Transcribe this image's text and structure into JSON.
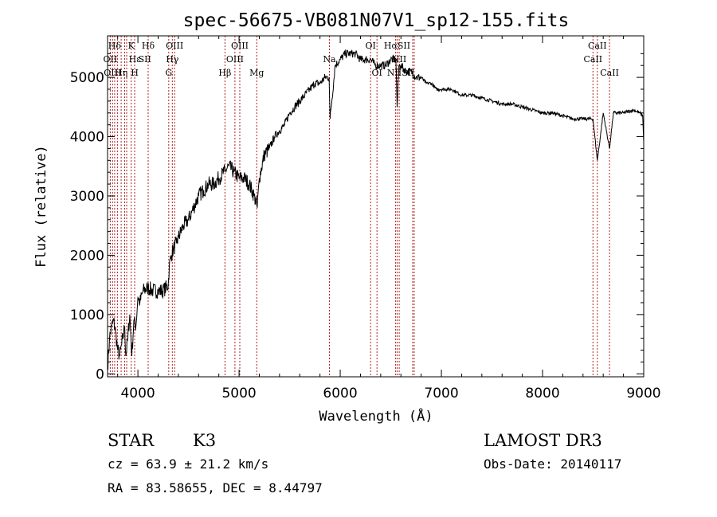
{
  "chart_data": {
    "type": "line",
    "title": "spec-56675-VB081N07V1_sp12-155.fits",
    "xlabel": "Wavelength (Å)",
    "ylabel": "Flux (relative)",
    "xlim": [
      3700,
      9000
    ],
    "ylim": [
      -50,
      5700
    ],
    "xticks": [
      4000,
      5000,
      6000,
      7000,
      8000,
      9000
    ],
    "yticks": [
      0,
      1000,
      2000,
      3000,
      4000,
      5000
    ],
    "grid": false,
    "legend": "none",
    "lines_color": "#b22222",
    "series": [
      {
        "x": [
          3700,
          3720,
          3740,
          3760,
          3780,
          3800,
          3820,
          3840,
          3860,
          3870,
          3880,
          3900,
          3920,
          3940,
          3960,
          3980,
          4000,
          4020,
          4050,
          4100,
          4150,
          4200,
          4250,
          4300,
          4310,
          4330,
          4350,
          4380,
          4400,
          4450,
          4500,
          4550,
          4600,
          4650,
          4700,
          4750,
          4800,
          4850,
          4900,
          4950,
          5000,
          5050,
          5100,
          5150,
          5180,
          5200,
          5250,
          5300,
          5350,
          5400,
          5450,
          5500,
          5550,
          5600,
          5650,
          5700,
          5750,
          5800,
          5850,
          5890,
          5900,
          5950,
          6000,
          6050,
          6100,
          6150,
          6200,
          6250,
          6300,
          6350,
          6400,
          6450,
          6500,
          6550,
          6563,
          6580,
          6600,
          6650,
          6700,
          6750,
          6800,
          6850,
          6900,
          6950,
          7000,
          7100,
          7200,
          7300,
          7400,
          7500,
          7600,
          7700,
          7800,
          7900,
          8000,
          8100,
          8200,
          8300,
          8400,
          8498,
          8542,
          8600,
          8662,
          8700,
          8800,
          8900,
          8960,
          8990,
          9000
        ],
        "y": [
          100,
          600,
          800,
          900,
          700,
          400,
          300,
          500,
          700,
          800,
          300,
          600,
          1000,
          300,
          900,
          800,
          1300,
          1200,
          1400,
          1450,
          1400,
          1400,
          1400,
          1500,
          1800,
          2000,
          2100,
          2200,
          2300,
          2500,
          2600,
          2800,
          3000,
          3100,
          3200,
          3200,
          3300,
          3400,
          3500,
          3400,
          3300,
          3300,
          3200,
          3000,
          2800,
          3300,
          3700,
          3800,
          4000,
          4100,
          4200,
          4400,
          4500,
          4600,
          4700,
          4800,
          4900,
          4900,
          5000,
          5000,
          4300,
          5200,
          5300,
          5400,
          5400,
          5400,
          5300,
          5300,
          5300,
          5200,
          5200,
          5200,
          5300,
          5300,
          4500,
          5200,
          5200,
          5100,
          5100,
          5000,
          5000,
          4900,
          4900,
          4800,
          4800,
          4800,
          4700,
          4700,
          4650,
          4600,
          4550,
          4550,
          4500,
          4450,
          4400,
          4400,
          4350,
          4300,
          4300,
          4300,
          3600,
          4400,
          3800,
          4400,
          4400,
          4450,
          4400,
          4350,
          3900
        ]
      }
    ],
    "line_labels": [
      {
        "text": "Hδ",
        "wl": 3770,
        "row": 0
      },
      {
        "text": "K",
        "wl": 3934,
        "row": 0
      },
      {
        "text": "Hδ",
        "wl": 4102,
        "row": 0
      },
      {
        "text": "OIII",
        "wl": 4363,
        "row": 0
      },
      {
        "text": "OIII",
        "wl": 5007,
        "row": 0
      },
      {
        "text": "OI",
        "wl": 6300,
        "row": 0
      },
      {
        "text": "HαSII",
        "wl": 6563,
        "row": 0
      },
      {
        "text": "CaII",
        "wl": 8542,
        "row": 0
      },
      {
        "text": "OII",
        "wl": 3727,
        "row": 1
      },
      {
        "text": "Hε",
        "wl": 3970,
        "row": 1
      },
      {
        "text": "SII",
        "wl": 4068,
        "row": 1
      },
      {
        "text": "Hγ",
        "wl": 4340,
        "row": 1
      },
      {
        "text": "OIII",
        "wl": 4959,
        "row": 1
      },
      {
        "text": "Na",
        "wl": 5893,
        "row": 1
      },
      {
        "text": "NII",
        "wl": 6583,
        "row": 1
      },
      {
        "text": "CaII",
        "wl": 8498,
        "row": 1
      },
      {
        "text": "OIII",
        "wl": 3750,
        "row": 2
      },
      {
        "text": "Hη",
        "wl": 3835,
        "row": 2
      },
      {
        "text": "H",
        "wl": 3968,
        "row": 2
      },
      {
        "text": "G",
        "wl": 4305,
        "row": 2
      },
      {
        "text": "Hβ",
        "wl": 4861,
        "row": 2
      },
      {
        "text": "Mg",
        "wl": 5175,
        "row": 2
      },
      {
        "text": "OI",
        "wl": 6363,
        "row": 2
      },
      {
        "text": "NIISII",
        "wl": 6600,
        "row": 2
      },
      {
        "text": "CaII",
        "wl": 8662,
        "row": 2
      }
    ],
    "line_markers": [
      3727,
      3750,
      3770,
      3798,
      3835,
      3869,
      3889,
      3934,
      3968,
      4102,
      4305,
      4340,
      4363,
      4861,
      4959,
      5007,
      5175,
      5893,
      6300,
      6363,
      6548,
      6563,
      6583,
      6716,
      6731,
      8498,
      8542,
      8662
    ]
  },
  "info": {
    "object_class": "STAR",
    "subclass": "K3",
    "survey": "LAMOST DR3",
    "cz": "cz = 63.9 ± 21.2 km/s",
    "obs_date": "Obs-Date: 20140117",
    "coords": "RA =  83.58655, DEC =   8.44797"
  }
}
